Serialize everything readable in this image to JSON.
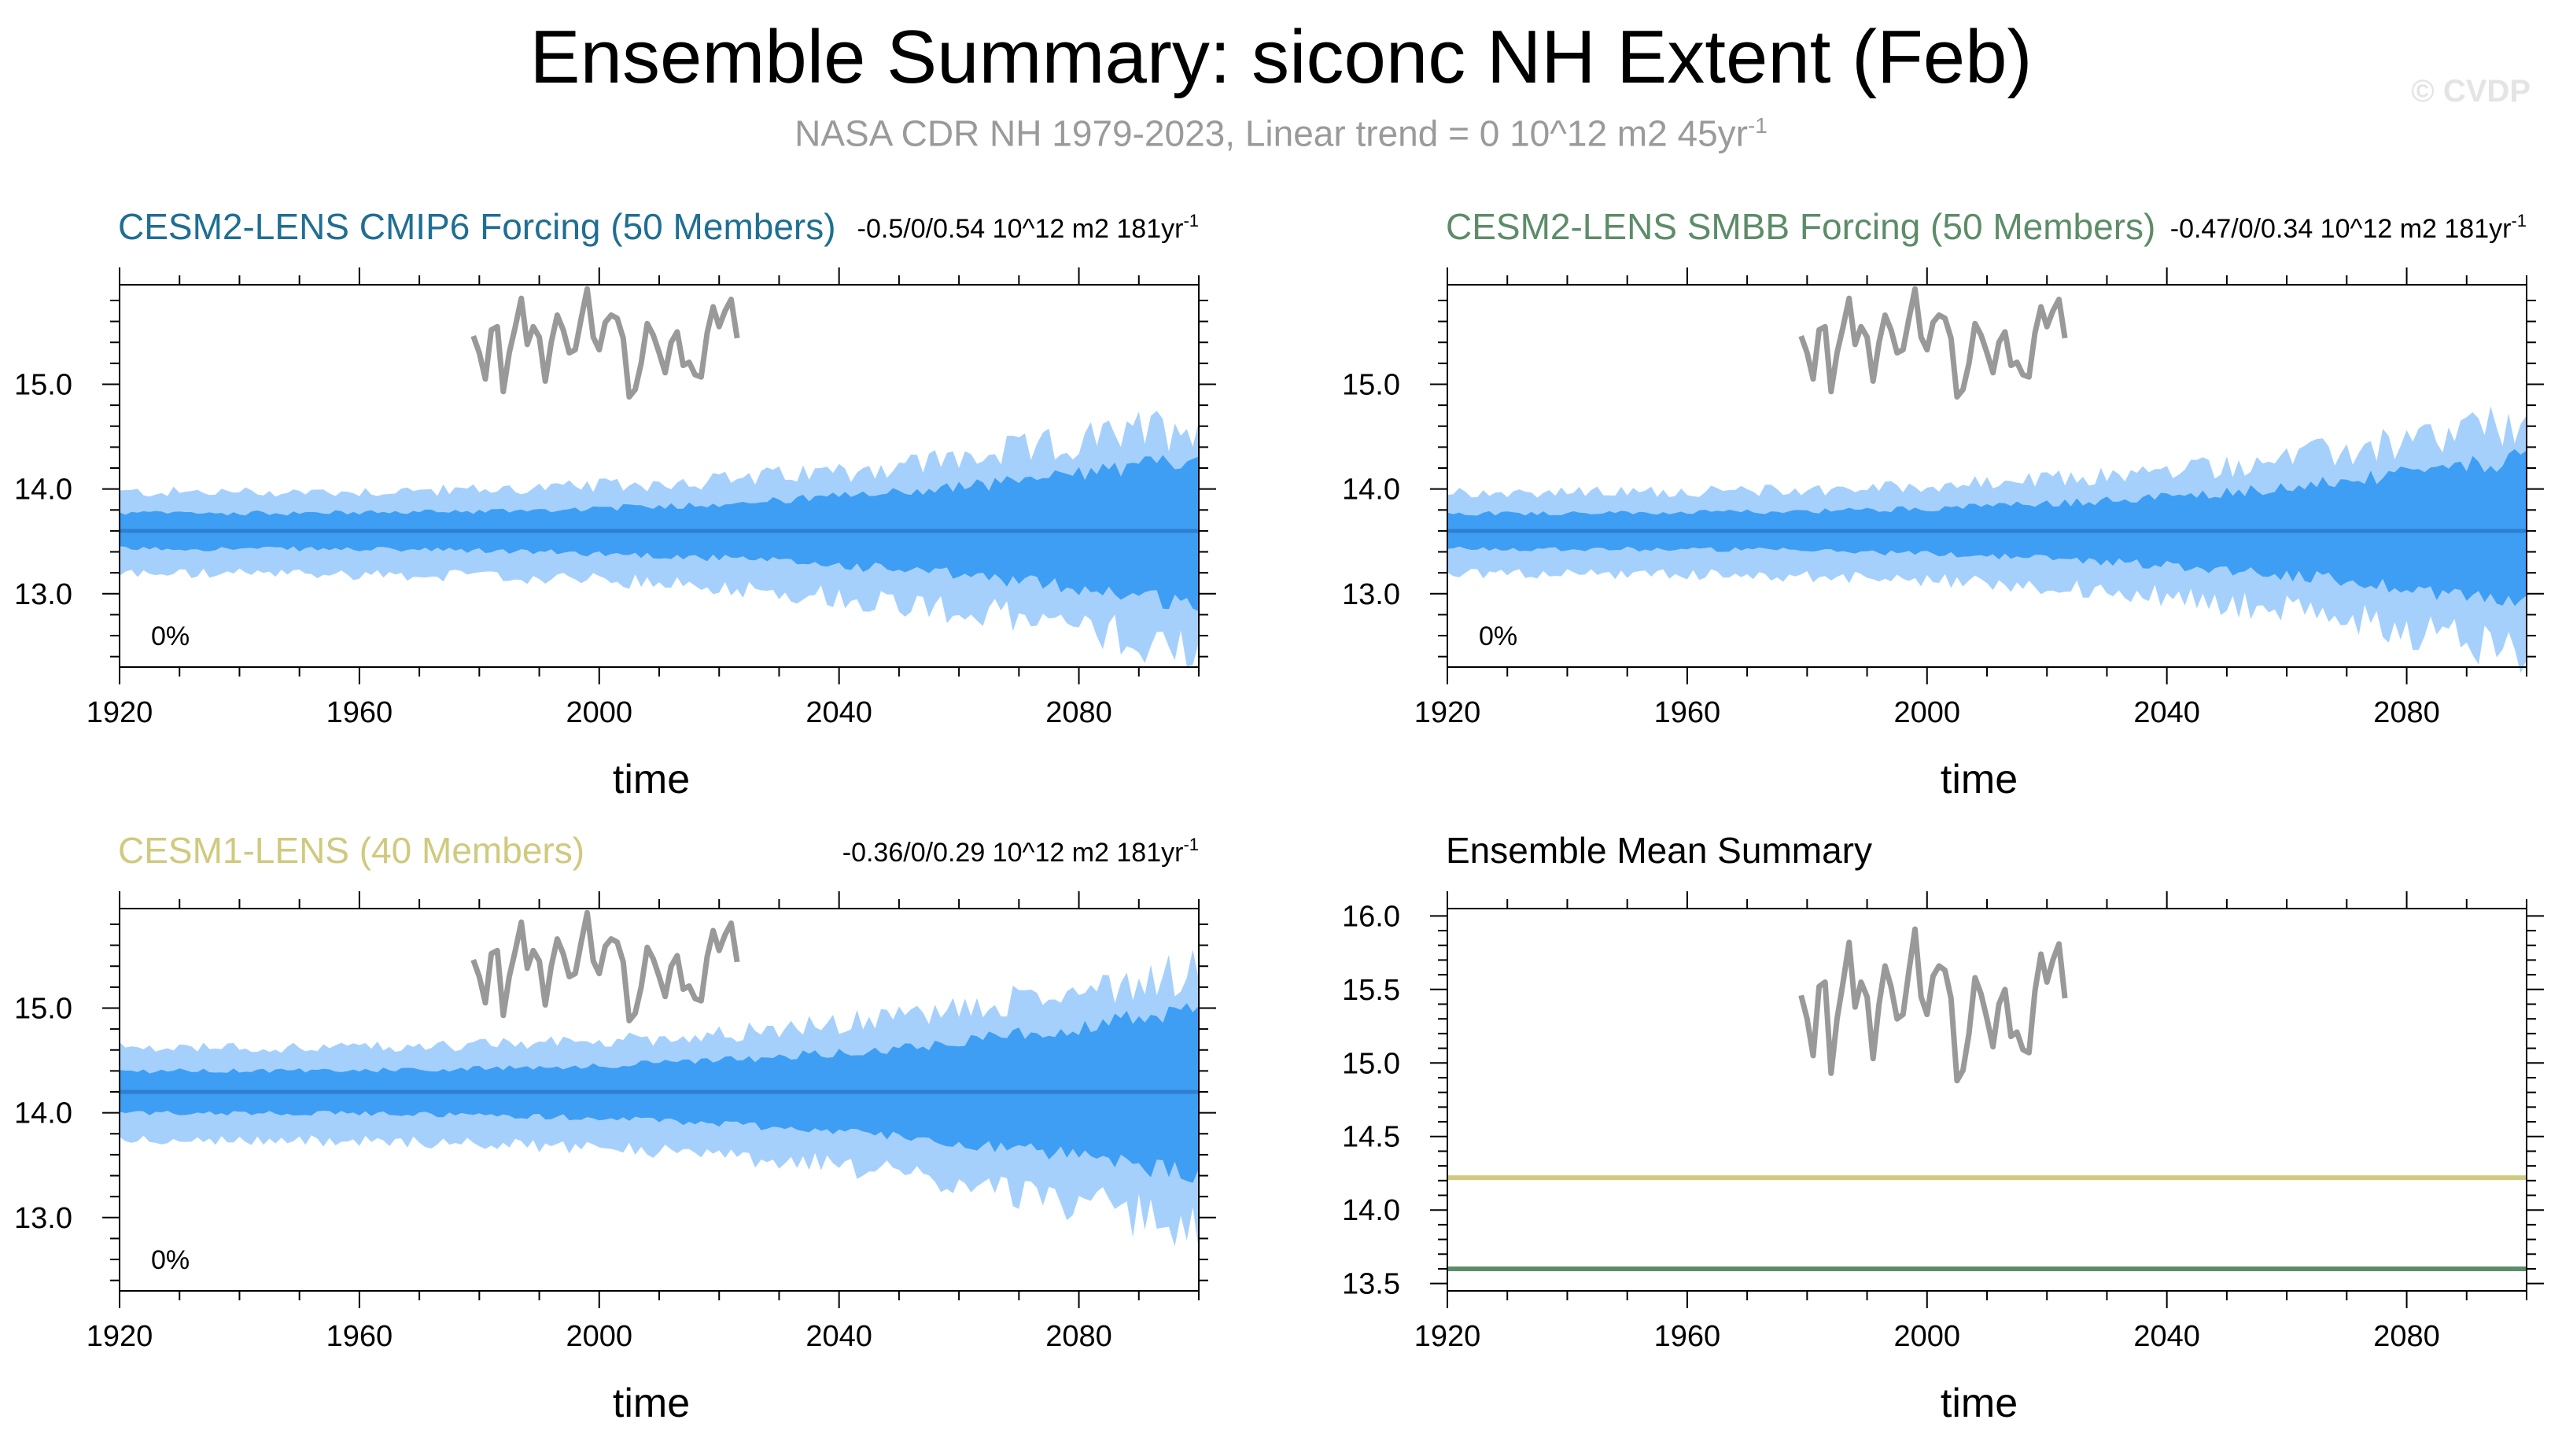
{
  "title": "Ensemble Summary: siconc NH Extent (Feb)",
  "subtitle": "NASA CDR NH 1979-2023, Linear trend = 0 10^12 m2 45yr",
  "subtitle_sup": "-1",
  "watermark": "© CVDP",
  "colors": {
    "outer_band": "#a6d0fc",
    "inner_band": "#3e9ef4",
    "mean_line": "#2f7fcf",
    "obs_line": "#999999",
    "cmip6": "#1f6e94",
    "smbb": "#5c8c68",
    "cesm1": "#cfca7e"
  },
  "observations": {
    "name": "NASA CDR NH",
    "years": [
      1979,
      1980,
      1981,
      1982,
      1983,
      1984,
      1985,
      1986,
      1987,
      1988,
      1989,
      1990,
      1991,
      1992,
      1993,
      1994,
      1995,
      1996,
      1997,
      1998,
      1999,
      2000,
      2001,
      2002,
      2003,
      2004,
      2005,
      2006,
      2007,
      2008,
      2009,
      2010,
      2011,
      2012,
      2013,
      2014,
      2015,
      2016,
      2017,
      2018,
      2019,
      2020,
      2021,
      2022,
      2023
    ],
    "values": [
      15.46,
      15.3,
      15.05,
      15.52,
      15.55,
      14.93,
      15.3,
      15.55,
      15.82,
      15.38,
      15.55,
      15.45,
      15.03,
      15.4,
      15.66,
      15.52,
      15.3,
      15.33,
      15.63,
      15.91,
      15.45,
      15.33,
      15.59,
      15.66,
      15.63,
      15.44,
      14.88,
      14.95,
      15.2,
      15.58,
      15.47,
      15.3,
      15.11,
      15.4,
      15.5,
      15.18,
      15.21,
      15.09,
      15.07,
      15.49,
      15.74,
      15.55,
      15.7,
      15.81,
      15.44
    ]
  },
  "panels": [
    {
      "title": "CESM2-LENS CMIP6 Forcing (50 Members)",
      "title_color": "#1f6e94",
      "trend": "-0.5/0/0.54 10^12 m2 181yr",
      "trend_sup": "-1",
      "pct_label": "0%",
      "xlabel": "time",
      "mean": 13.6,
      "start_year": 1920,
      "end_year": 2100,
      "outer_spread": {
        "start": 0.37,
        "end": 1.05
      },
      "inner_spread": {
        "start": 0.17,
        "end": 0.7
      },
      "ylim": [
        12.3,
        15.95
      ],
      "yticks": [
        {
          "value": 13.0,
          "label": "13.0"
        },
        {
          "value": 14.0,
          "label": "14.0"
        },
        {
          "value": 15.0,
          "label": "15.0"
        }
      ],
      "xticks": [
        {
          "value": 1920,
          "label": "1920"
        },
        {
          "value": 1960,
          "label": "1960"
        },
        {
          "value": 2000,
          "label": "2000"
        },
        {
          "value": 2040,
          "label": "2040"
        },
        {
          "value": 2080,
          "label": "2080"
        }
      ]
    },
    {
      "title": "CESM2-LENS SMBB Forcing (50 Members)",
      "title_color": "#5c8c68",
      "trend": "-0.47/0/0.34 10^12 m2 181yr",
      "trend_sup": "-1",
      "pct_label": "0%",
      "xlabel": "time",
      "mean": 13.6,
      "start_year": 1920,
      "end_year": 2100,
      "outer_spread": {
        "start": 0.37,
        "end": 1.05
      },
      "inner_spread": {
        "start": 0.17,
        "end": 0.7
      },
      "ylim": [
        12.3,
        15.95
      ],
      "yticks": [
        {
          "value": 13.0,
          "label": "13.0"
        },
        {
          "value": 14.0,
          "label": "14.0"
        },
        {
          "value": 15.0,
          "label": "15.0"
        }
      ],
      "xticks": [
        {
          "value": 1920,
          "label": "1920"
        },
        {
          "value": 1960,
          "label": "1960"
        },
        {
          "value": 2000,
          "label": "2000"
        },
        {
          "value": 2040,
          "label": "2040"
        },
        {
          "value": 2080,
          "label": "2080"
        }
      ]
    },
    {
      "title": "CESM1-LENS (40 Members)",
      "title_color": "#cfca7e",
      "trend": "-0.36/0/0.29 10^12 m2 181yr",
      "trend_sup": "-1",
      "pct_label": "0%",
      "xlabel": "time",
      "mean": 14.2,
      "start_year": 1920,
      "end_year": 2100,
      "outer_spread": {
        "start": 0.42,
        "end": 1.2
      },
      "inner_spread": {
        "start": 0.2,
        "end": 0.8
      },
      "ylim": [
        12.3,
        15.95
      ],
      "yticks": [
        {
          "value": 13.0,
          "label": "13.0"
        },
        {
          "value": 14.0,
          "label": "14.0"
        },
        {
          "value": 15.0,
          "label": "15.0"
        }
      ],
      "xticks": [
        {
          "value": 1920,
          "label": "1920"
        },
        {
          "value": 1960,
          "label": "1960"
        },
        {
          "value": 2000,
          "label": "2000"
        },
        {
          "value": 2040,
          "label": "2040"
        },
        {
          "value": 2080,
          "label": "2080"
        }
      ]
    }
  ],
  "summary_panel": {
    "title": "Ensemble Mean Summary",
    "xlabel": "time",
    "ylim": [
      13.45,
      16.05
    ],
    "yticks": [
      {
        "value": 13.5,
        "label": "13.5"
      },
      {
        "value": 14.0,
        "label": "14.0"
      },
      {
        "value": 14.5,
        "label": "14.5"
      },
      {
        "value": 15.0,
        "label": "15.0"
      },
      {
        "value": 15.5,
        "label": "15.5"
      },
      {
        "value": 16.0,
        "label": "16.0"
      }
    ],
    "xticks": [
      {
        "value": 1920,
        "label": "1920"
      },
      {
        "value": 1960,
        "label": "1960"
      },
      {
        "value": 2000,
        "label": "2000"
      },
      {
        "value": 2040,
        "label": "2040"
      },
      {
        "value": 2080,
        "label": "2080"
      }
    ],
    "lines": [
      {
        "name": "CESM1-LENS",
        "value": 14.22,
        "color": "#cfca7e"
      },
      {
        "name": "CESM2-LENS CMIP6 Forcing",
        "value": 13.6,
        "color": "#1f6e94"
      },
      {
        "name": "CESM2-LENS SMBB Forcing",
        "value": 13.6,
        "color": "#5c8c68"
      }
    ]
  },
  "chart_data": {
    "type": "line",
    "title": "Ensemble Summary: siconc NH Extent (Feb)",
    "xlabel": "time",
    "ylabel": "",
    "x_range": [
      1920,
      2100
    ],
    "series": [
      {
        "name": "CESM2-LENS CMIP6 Forcing ensemble mean",
        "value": 13.6
      },
      {
        "name": "CESM2-LENS SMBB Forcing ensemble mean",
        "value": 13.6
      },
      {
        "name": "CESM1-LENS ensemble mean",
        "value": 14.2
      },
      {
        "name": "NASA CDR NH observations",
        "x_range": [
          1979,
          2023
        ]
      }
    ]
  }
}
